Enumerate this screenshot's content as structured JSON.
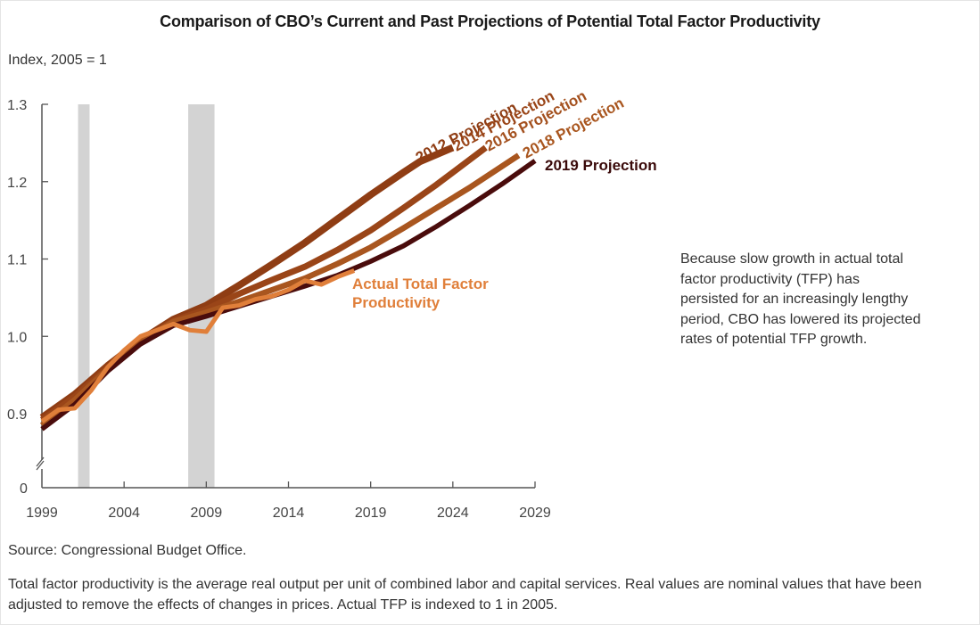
{
  "title": "Comparison of CBO’s Current and Past Projections of Potential Total Factor Productivity",
  "y_axis_label": "Index, 2005 = 1",
  "annotation": "Because slow growth in actual total factor productivity (TFP) has persisted for an increasingly lengthy period, CBO has lowered its projected rates of potential TFP growth.",
  "source": "Source: Congressional Budget Office.",
  "note": "Total factor productivity is the average real output per unit of combined labor and capital services. Real values are nominal values that have been adjusted to remove the effects of changes in prices. Actual TFP is indexed to 1 in 2005.",
  "colors": {
    "p2012": "#8f3d14",
    "p2014": "#9a4518",
    "p2016": "#a4511f",
    "p2018": "#a9561f",
    "p2019": "#4a0c0c",
    "actual": "#e07f3a",
    "recession": "#d3d3d3",
    "axis": "#555555"
  },
  "chart_data": {
    "type": "line",
    "title": "Comparison of CBO’s Current and Past Projections of Potential Total Factor Productivity",
    "xlabel": "",
    "ylabel": "Index, 2005 = 1",
    "xlim": [
      1999,
      2029
    ],
    "ylim": [
      0.86,
      1.3
    ],
    "y_axis_break": true,
    "x_ticks": [
      1999,
      2004,
      2009,
      2014,
      2019,
      2024,
      2029
    ],
    "x_tick_labels": [
      "1999",
      "2004",
      "2009",
      "2014",
      "2019",
      "2024",
      "2029"
    ],
    "y_ticks": [
      0.9,
      1.0,
      1.1,
      1.2,
      1.3
    ],
    "y_tick_labels": [
      "0.9",
      "1.0",
      "1.1",
      "1.2",
      "1.3"
    ],
    "y_zero_label": "0",
    "grid": false,
    "recessions": [
      [
        2001.2,
        2001.9
      ],
      [
        2007.9,
        2009.5
      ]
    ],
    "series": [
      {
        "key": "p2012",
        "name": "2012 Projection",
        "label": "2012 Projection",
        "x": [
          1999,
          2001,
          2003,
          2005,
          2007,
          2009,
          2011,
          2013,
          2015,
          2017,
          2019,
          2021,
          2022,
          2024
        ],
        "values": [
          0.895,
          0.925,
          0.962,
          0.995,
          1.022,
          1.04,
          1.066,
          1.093,
          1.121,
          1.152,
          1.183,
          1.212,
          1.226,
          1.244
        ]
      },
      {
        "key": "p2014",
        "name": "2014 Projection",
        "label": "2014 Projection",
        "x": [
          1999,
          2001,
          2003,
          2005,
          2007,
          2009,
          2011,
          2013,
          2015,
          2017,
          2019,
          2021,
          2023,
          2026
        ],
        "values": [
          0.892,
          0.922,
          0.96,
          0.994,
          1.02,
          1.035,
          1.055,
          1.073,
          1.09,
          1.112,
          1.137,
          1.166,
          1.196,
          1.244
        ]
      },
      {
        "key": "p2016",
        "name": "2016 Projection",
        "label": "2016 Projection",
        "x": [
          1999,
          2001,
          2003,
          2005,
          2007,
          2009,
          2011,
          2013,
          2015,
          2017,
          2019,
          2021,
          2023,
          2025,
          2028
        ],
        "values": [
          0.885,
          0.918,
          0.958,
          0.993,
          1.019,
          1.031,
          1.045,
          1.06,
          1.075,
          1.094,
          1.115,
          1.14,
          1.166,
          1.192,
          1.234
        ]
      },
      {
        "key": "p2018",
        "name": "2018 Projection",
        "label": "2018 Projection",
        "x": [
          1999,
          2001,
          2003,
          2005,
          2007,
          2009,
          2011,
          2013,
          2015,
          2017,
          2019,
          2021,
          2023,
          2025,
          2028
        ],
        "values": [
          0.885,
          0.918,
          0.958,
          0.993,
          1.019,
          1.031,
          1.045,
          1.06,
          1.075,
          1.094,
          1.115,
          1.14,
          1.166,
          1.192,
          1.234
        ]
      },
      {
        "key": "p2019",
        "name": "2019 Projection",
        "label": "2019 Projection",
        "x": [
          1999,
          2001,
          2003,
          2005,
          2007,
          2009,
          2011,
          2013,
          2015,
          2017,
          2018,
          2019,
          2021,
          2023,
          2025,
          2027,
          2029
        ],
        "values": [
          0.88,
          0.912,
          0.955,
          0.99,
          1.014,
          1.026,
          1.039,
          1.052,
          1.065,
          1.079,
          1.088,
          1.097,
          1.117,
          1.142,
          1.169,
          1.197,
          1.227
        ]
      },
      {
        "key": "actual",
        "name": "Actual Total Factor Productivity",
        "label": "Actual Total Factor Productivity",
        "x": [
          1999,
          2000,
          2001,
          2002,
          2003,
          2004,
          2005,
          2006,
          2007,
          2008,
          2009,
          2010,
          2011,
          2012,
          2013,
          2014,
          2015,
          2016,
          2017,
          2018
        ],
        "values": [
          0.89,
          0.905,
          0.907,
          0.93,
          0.96,
          0.982,
          1.0,
          1.008,
          1.016,
          1.008,
          1.006,
          1.037,
          1.04,
          1.048,
          1.052,
          1.06,
          1.072,
          1.067,
          1.077,
          1.085
        ]
      }
    ]
  }
}
